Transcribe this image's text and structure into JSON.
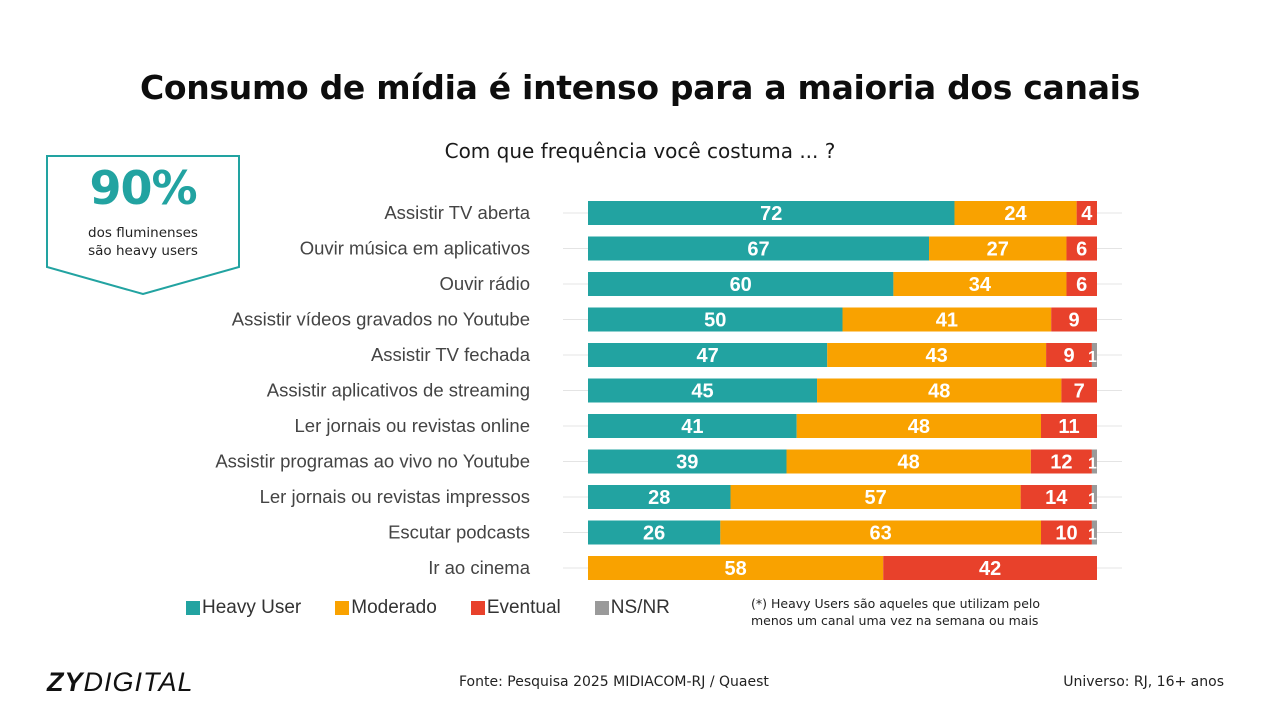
{
  "page": {
    "title": "Consumo de mídia é intenso para a maioria dos canais",
    "subtitle": "Com que frequência você costuma ... ?"
  },
  "badge": {
    "value": "90%",
    "line1": "dos fluminenses",
    "line2": "são heavy users"
  },
  "footnote": {
    "line1": "(*) Heavy Users são aqueles que utilizam pelo",
    "line2": "menos um canal uma vez na semana ou mais"
  },
  "footer": {
    "logo_bold": "ZY",
    "logo_light": "DIGITAL",
    "source": "Fonte: Pesquisa 2025 MIDIACOM-RJ / Quaest",
    "universe": "Universo: RJ, 16+ anos"
  },
  "colors": {
    "heavy": "#22a3a1",
    "moderado": "#f9a200",
    "eventual": "#e8412b",
    "nsnr": "#9a9a9a",
    "badge_border": "#22a3a1"
  },
  "chart_data": {
    "type": "bar",
    "orientation": "horizontal",
    "stacked": true,
    "title": "Com que frequência você costuma ... ?",
    "xlabel": "",
    "ylabel": "",
    "xlim": [
      0,
      100
    ],
    "grid": false,
    "legend_position": "bottom-left",
    "categories": [
      "Assistir TV aberta",
      "Ouvir música em aplicativos",
      "Ouvir rádio",
      "Assistir vídeos gravados no Youtube",
      "Assistir TV fechada",
      "Assistir aplicativos de streaming",
      "Ler jornais ou revistas online",
      "Assistir programas ao vivo no Youtube",
      "Ler jornais ou revistas impressos",
      "Escutar podcasts",
      "Ir ao cinema"
    ],
    "series": [
      {
        "name": "Heavy User",
        "color": "#22a3a1",
        "values": [
          72,
          67,
          60,
          50,
          47,
          45,
          41,
          39,
          28,
          26,
          0
        ]
      },
      {
        "name": "Moderado",
        "color": "#f9a200",
        "values": [
          24,
          27,
          34,
          41,
          43,
          48,
          48,
          48,
          57,
          63,
          58
        ]
      },
      {
        "name": "Eventual",
        "color": "#e8412b",
        "values": [
          4,
          6,
          6,
          9,
          9,
          7,
          11,
          12,
          14,
          10,
          42
        ]
      },
      {
        "name": "NS/NR",
        "color": "#9a9a9a",
        "values": [
          0,
          0,
          0,
          0,
          1,
          0,
          0,
          1,
          1,
          1,
          0
        ]
      }
    ]
  }
}
